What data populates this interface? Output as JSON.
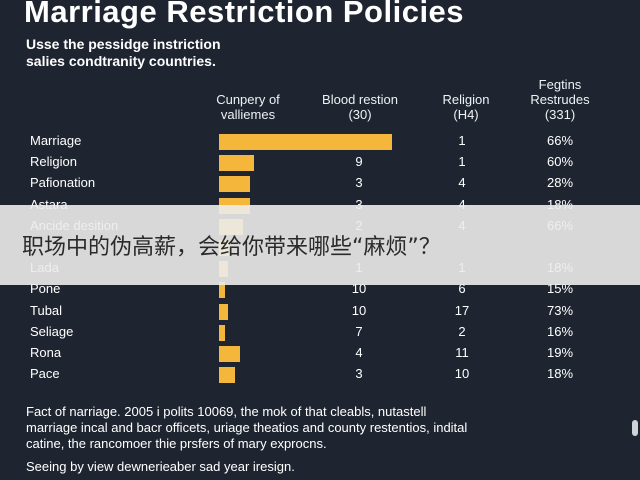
{
  "title": "Marriage Restriction Policies",
  "subtitle": [
    "Usse the pessidge instriction",
    "salies condtranity countries."
  ],
  "headers": {
    "col1": [
      "Cunpery of",
      "valliemes"
    ],
    "col2": [
      "Blood restion",
      "(30)"
    ],
    "col3": [
      "Religion",
      "(H4)"
    ],
    "col4": [
      "Fegtins",
      "Restrudes",
      "(331)"
    ]
  },
  "chart_data": {
    "type": "bar",
    "categories": [
      "Marriage",
      "Religion",
      "Pafionation",
      "Astara",
      "Ancide desition",
      "",
      "Lada",
      "Pone",
      "Tubal",
      "Seliage",
      "Rona",
      "Pace"
    ],
    "series": [
      {
        "values": [
          100,
          20,
          18,
          18,
          14,
          6,
          5,
          3,
          5,
          2,
          12,
          9
        ]
      }
    ],
    "table": {
      "blood": [
        "",
        "9",
        "3",
        "3",
        "2",
        "",
        "1",
        "10",
        "10",
        "7",
        "4",
        "3"
      ],
      "religion": [
        "1",
        "1",
        "4",
        "4",
        "4",
        "",
        "1",
        "6",
        "17",
        "2",
        "11",
        "10"
      ],
      "pct": [
        "66%",
        "60%",
        "28%",
        "18%",
        "66%",
        "",
        "18%",
        "15%",
        "73%",
        "16%",
        "19%",
        "18%"
      ]
    }
  },
  "footnote": [
    "Fact of narriage. 2005 i polits 10069, the mok of that cleabls, nutastell",
    "marriage incal and bacr officets, uriage theatios and county restentios, indital",
    "catine, the rancomoer thie prsfers of mary exprocns."
  ],
  "caption": "Seeing by view dewnerieaber sad year iresign.",
  "overlay_text": "职场中的伪高薪，会给你带来哪些“麻烦”？",
  "colors": {
    "background": "#1f2530",
    "bar": "#f5b73b",
    "text": "#ffffff"
  }
}
